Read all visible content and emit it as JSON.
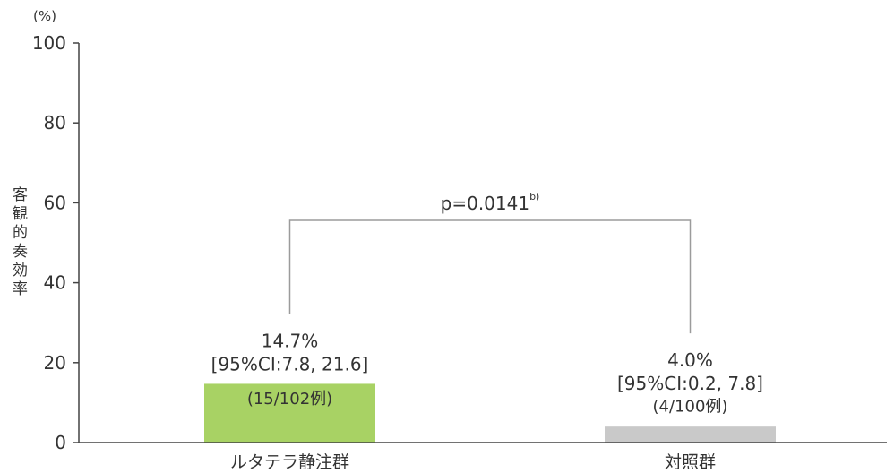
{
  "chart_data": {
    "type": "bar",
    "ylabel": "客観的奏効率",
    "yunit": "(%)",
    "categories": [
      "ルタテラ静注群",
      "対照群"
    ],
    "values": [
      14.7,
      4.0
    ],
    "ylim": [
      0,
      100
    ],
    "yticks": [
      0,
      20,
      40,
      60,
      80,
      100
    ],
    "grid": false,
    "bar_colors": [
      "#a8d264",
      "#c9c9c9"
    ],
    "bar_annotations": [
      {
        "value_label": "14.7%",
        "ci_label": "[95%CI:7.8, 21.6]",
        "n_label": "(15/102例)"
      },
      {
        "value_label": "4.0%",
        "ci_label": "[95%CI:0.2, 7.8]",
        "n_label": "(4/100例)"
      }
    ],
    "comparison": {
      "between": [
        0,
        1
      ],
      "label": "p=0.0141",
      "footnote": "b)"
    }
  }
}
